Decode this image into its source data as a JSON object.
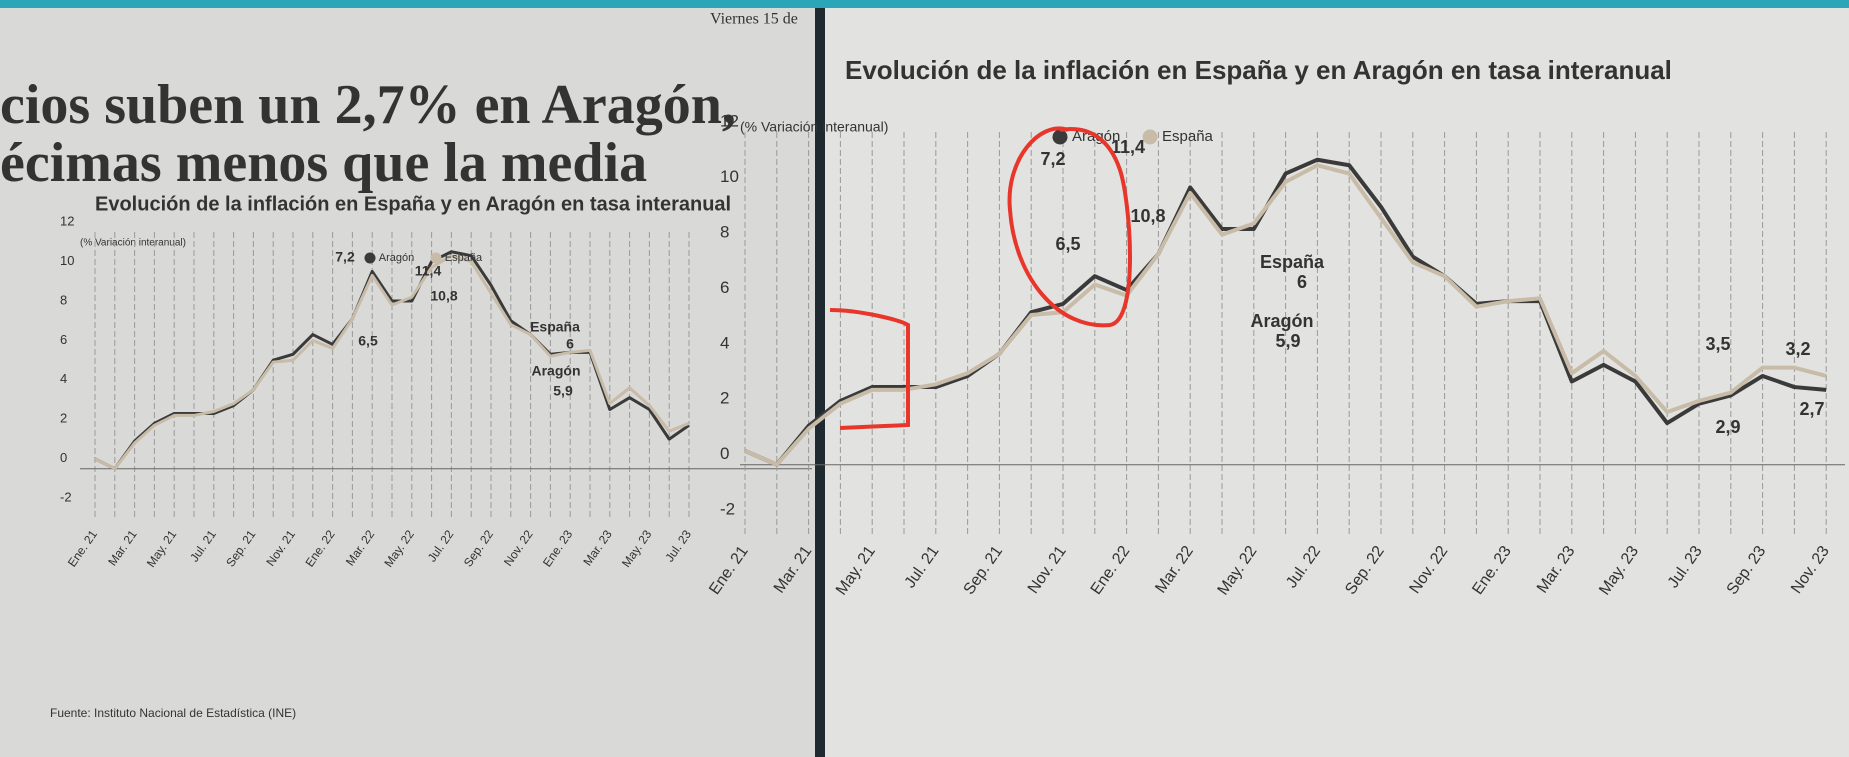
{
  "dateline": "Viernes 15 de",
  "headline": [
    "cios suben un 2,7% en Aragón,",
    "écimas menos que la media"
  ],
  "source": "Fuente: Instituto Nacional de Estadística (INE)",
  "chart_data": [
    {
      "type": "line",
      "title": "Evolución de la inflación en España y en Aragón en tasa interanual",
      "y_label": "(% Variación interanual)",
      "categories": [
        "Ene. 21",
        null,
        "Mar. 21",
        null,
        "May. 21",
        null,
        "Jul. 21",
        null,
        "Sep. 21",
        null,
        "Nov. 21",
        null,
        "Ene. 22",
        null,
        "Mar. 22",
        null,
        "May. 22",
        null,
        "Jul. 22",
        null,
        "Sep. 22",
        null,
        "Nov. 22",
        null,
        "Ene. 23",
        null,
        "Mar. 23",
        null,
        "May. 23",
        null,
        "Jul. 23"
      ],
      "series": [
        {
          "name": "Aragón",
          "color": "#3a3a3a",
          "values": [
            0.5,
            0.0,
            1.4,
            2.3,
            2.8,
            2.8,
            2.8,
            3.2,
            4.0,
            5.5,
            5.8,
            6.8,
            6.3,
            7.6,
            10.0,
            8.5,
            8.5,
            10.5,
            11.0,
            10.8,
            9.3,
            7.5,
            6.8,
            5.8,
            5.9,
            5.9,
            3.0,
            3.6,
            3.0,
            1.5,
            2.2
          ]
        },
        {
          "name": "España",
          "color": "#c8bba8",
          "values": [
            0.5,
            0.0,
            1.3,
            2.2,
            2.7,
            2.7,
            2.9,
            3.3,
            4.0,
            5.4,
            5.5,
            6.5,
            6.1,
            7.6,
            9.8,
            8.3,
            8.7,
            10.2,
            10.8,
            10.5,
            8.9,
            7.3,
            6.8,
            5.7,
            5.9,
            6.0,
            3.3,
            4.1,
            3.2,
            1.9,
            2.3
          ]
        }
      ],
      "annotations": [
        "7,2",
        "6,5",
        "11,4",
        "10,8",
        "España",
        "6",
        "Aragón",
        "5,9"
      ],
      "ylim": [
        -2.5,
        12
      ],
      "yticks": [
        -2,
        0,
        2,
        4,
        6,
        8,
        10,
        12
      ],
      "grid": true
    },
    {
      "type": "line",
      "title": "Evolución de la inflación en España y en Aragón en tasa interanual",
      "y_label": "(% Variación interanual)",
      "categories": [
        "Ene. 21",
        null,
        "Mar. 21",
        null,
        "May. 21",
        null,
        "Jul. 21",
        null,
        "Sep. 21",
        null,
        "Nov. 21",
        null,
        "Ene. 22",
        null,
        "Mar. 22",
        null,
        "May. 22",
        null,
        "Jul. 22",
        null,
        "Sep. 22",
        null,
        "Nov. 22",
        null,
        "Ene. 23",
        null,
        "Mar. 23",
        null,
        "May. 23",
        null,
        "Jul. 23",
        null,
        "Sep. 23",
        null,
        "Nov. 23"
      ],
      "series": [
        {
          "name": "Aragón",
          "color": "#3a3a3a",
          "values": [
            0.5,
            0.0,
            1.4,
            2.3,
            2.8,
            2.8,
            2.8,
            3.2,
            4.0,
            5.5,
            5.8,
            6.8,
            6.3,
            7.6,
            10.0,
            8.5,
            8.5,
            10.5,
            11.0,
            10.8,
            9.3,
            7.5,
            6.8,
            5.8,
            5.9,
            5.9,
            3.0,
            3.6,
            3.0,
            1.5,
            2.2,
            2.5,
            3.2,
            2.8,
            2.7
          ]
        },
        {
          "name": "España",
          "color": "#c8bba8",
          "values": [
            0.5,
            0.0,
            1.3,
            2.2,
            2.7,
            2.7,
            2.9,
            3.3,
            4.0,
            5.4,
            5.5,
            6.5,
            6.1,
            7.6,
            9.8,
            8.3,
            8.7,
            10.2,
            10.8,
            10.5,
            8.9,
            7.3,
            6.8,
            5.7,
            5.9,
            6.0,
            3.3,
            4.1,
            3.2,
            1.9,
            2.3,
            2.6,
            3.5,
            3.5,
            3.2
          ]
        }
      ],
      "annotations": [
        "7,2",
        "6,5",
        "11,4",
        "10,8",
        "España",
        "6",
        "Aragón",
        "5,9",
        "3,5",
        "3,2",
        "2,9",
        "2,7"
      ],
      "ylim": [
        -2.5,
        12
      ],
      "yticks": [
        -2,
        0,
        2,
        4,
        6,
        8,
        10,
        12
      ],
      "grid": true
    }
  ]
}
